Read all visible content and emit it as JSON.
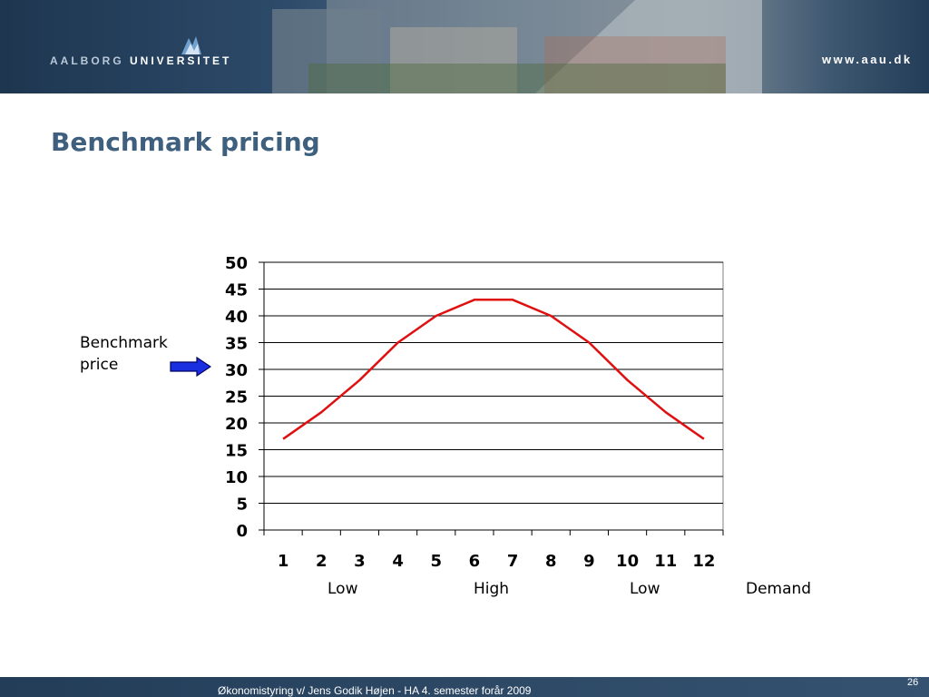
{
  "header": {
    "logo_prefix": "AALBORG",
    "logo_suffix": "UNIVERSITET",
    "url": "www.aau.dk"
  },
  "slide": {
    "title": "Benchmark pricing"
  },
  "annotations": {
    "benchmark_line1": "Benchmark",
    "benchmark_line2": "price",
    "low_left": "Low",
    "high": "High",
    "low_right": "Low",
    "demand": "Demand"
  },
  "footer": {
    "text": "Økonomistyring v/ Jens Godik Højen - HA 4. semester forår 2009",
    "page": "26"
  },
  "colors": {
    "line": "#e01010",
    "arrow": "#1a2fe0",
    "title": "#3f5f7f"
  },
  "chart_data": {
    "type": "line",
    "categories": [
      "1",
      "2",
      "3",
      "4",
      "5",
      "6",
      "7",
      "8",
      "9",
      "10",
      "11",
      "12"
    ],
    "series": [
      {
        "values": [
          17,
          22,
          28,
          35,
          40,
          43,
          43,
          40,
          35,
          28,
          22,
          17
        ]
      }
    ],
    "ylim": [
      0,
      50
    ],
    "yticks": [
      "0",
      "5",
      "10",
      "15",
      "20",
      "25",
      "30",
      "35",
      "40",
      "45",
      "50"
    ],
    "grid": true,
    "legend": "none"
  }
}
